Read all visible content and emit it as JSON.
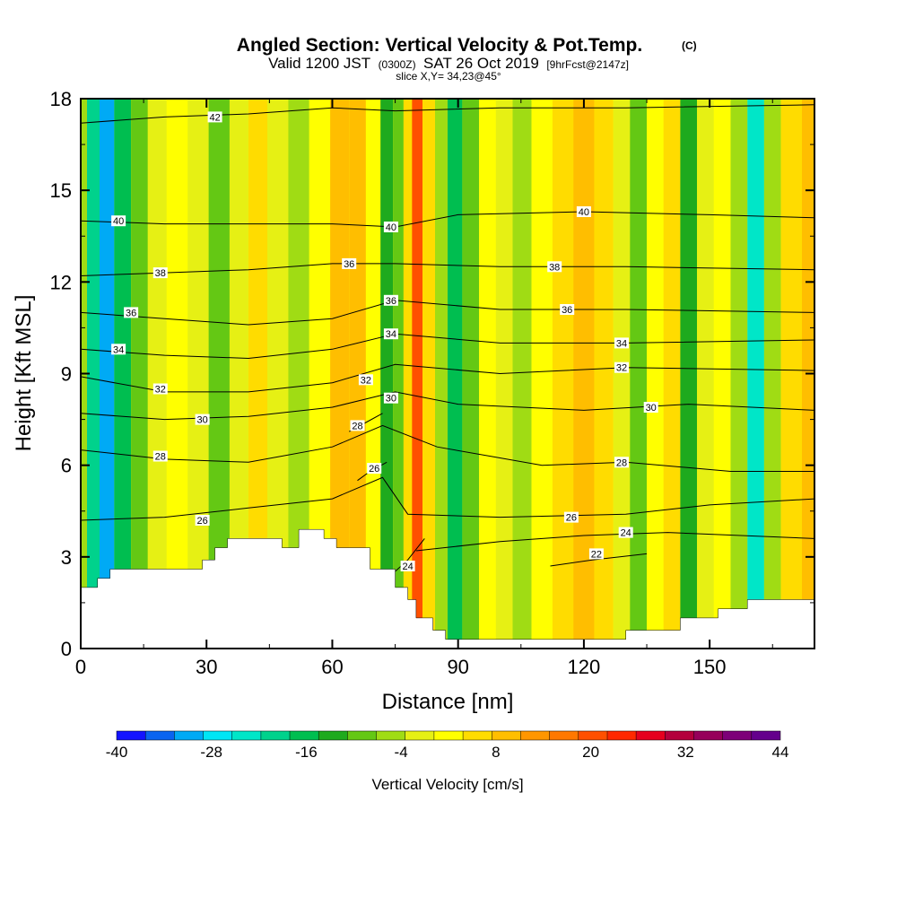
{
  "title": {
    "main": "Angled Section: Vertical Velocity & Pot.Temp.",
    "copyright": "(C)",
    "valid_a": "Valid 1200 JST",
    "valid_utc": "(0300Z)",
    "valid_b": "SAT 26 Oct 2019",
    "fcst": "[9hrFcst@2147z]",
    "slice": "slice X,Y= 34,23@45°"
  },
  "chart_data": {
    "type": "heatmap",
    "xlabel": "Distance [nm]",
    "ylabel": "Height [Kft MSL]",
    "xlim": [
      0,
      175
    ],
    "ylim": [
      0,
      18
    ],
    "x_ticks": [
      "0",
      "30",
      "60",
      "90",
      "120",
      "150"
    ],
    "y_ticks": [
      "0",
      "3",
      "6",
      "9",
      "12",
      "15",
      "18"
    ],
    "colorbar": {
      "label": "Vertical Velocity [cm/s]",
      "range": [
        -40,
        44
      ],
      "step": 4,
      "tick_labels": [
        "-40",
        "-28",
        "-16",
        "-4",
        "8",
        "20",
        "32",
        "44"
      ],
      "colors": [
        "#1414ff",
        "#0a64f0",
        "#00aaf5",
        "#00e6f5",
        "#00e6c8",
        "#00d28c",
        "#00be50",
        "#1eaa1e",
        "#64c814",
        "#a0dc14",
        "#e6f014",
        "#ffff00",
        "#ffdc00",
        "#ffbe00",
        "#ff9600",
        "#ff7800",
        "#ff5000",
        "#ff2800",
        "#e6001e",
        "#b4003c",
        "#96005a",
        "#7d0078",
        "#64008c"
      ]
    },
    "vertical_velocity_columns": [
      {
        "x": 0,
        "w": -2
      },
      {
        "x": 3,
        "w": -20
      },
      {
        "x": 6,
        "w": -30
      },
      {
        "x": 10,
        "w": -14
      },
      {
        "x": 14,
        "w": -8
      },
      {
        "x": 18,
        "w": 0
      },
      {
        "x": 23,
        "w": 6
      },
      {
        "x": 28,
        "w": 2
      },
      {
        "x": 33,
        "w": -6
      },
      {
        "x": 38,
        "w": 2
      },
      {
        "x": 42,
        "w": 8
      },
      {
        "x": 47,
        "w": 2
      },
      {
        "x": 52,
        "w": -4
      },
      {
        "x": 57,
        "w": 4
      },
      {
        "x": 62,
        "w": 12
      },
      {
        "x": 66,
        "w": 14
      },
      {
        "x": 70,
        "w": 6
      },
      {
        "x": 73,
        "w": -10
      },
      {
        "x": 76,
        "w": -6
      },
      {
        "x": 78,
        "w": 8
      },
      {
        "x": 80,
        "w": 24
      },
      {
        "x": 83,
        "w": 8
      },
      {
        "x": 86,
        "w": -4
      },
      {
        "x": 89,
        "w": -16
      },
      {
        "x": 93,
        "w": -6
      },
      {
        "x": 97,
        "w": 6
      },
      {
        "x": 101,
        "w": 2
      },
      {
        "x": 105,
        "w": -4
      },
      {
        "x": 110,
        "w": 4
      },
      {
        "x": 115,
        "w": 8
      },
      {
        "x": 120,
        "w": 14
      },
      {
        "x": 125,
        "w": 10
      },
      {
        "x": 129,
        "w": 2
      },
      {
        "x": 133,
        "w": -6
      },
      {
        "x": 137,
        "w": 6
      },
      {
        "x": 141,
        "w": 10
      },
      {
        "x": 145,
        "w": -12
      },
      {
        "x": 149,
        "w": 2
      },
      {
        "x": 153,
        "w": 6
      },
      {
        "x": 157,
        "w": -4
      },
      {
        "x": 161,
        "w": -22
      },
      {
        "x": 165,
        "w": -4
      },
      {
        "x": 169,
        "w": 8
      },
      {
        "x": 175,
        "w": 14
      }
    ],
    "terrain_top": [
      {
        "x": 0,
        "h": 2.0
      },
      {
        "x": 4,
        "h": 2.0
      },
      {
        "x": 4,
        "h": 2.3
      },
      {
        "x": 7,
        "h": 2.3
      },
      {
        "x": 7,
        "h": 2.6
      },
      {
        "x": 14,
        "h": 2.6
      },
      {
        "x": 29,
        "h": 2.6
      },
      {
        "x": 29,
        "h": 2.9
      },
      {
        "x": 32,
        "h": 2.9
      },
      {
        "x": 32,
        "h": 3.3
      },
      {
        "x": 35,
        "h": 3.3
      },
      {
        "x": 35,
        "h": 3.6
      },
      {
        "x": 48,
        "h": 3.6
      },
      {
        "x": 48,
        "h": 3.3
      },
      {
        "x": 52,
        "h": 3.3
      },
      {
        "x": 52,
        "h": 3.9
      },
      {
        "x": 58,
        "h": 3.9
      },
      {
        "x": 58,
        "h": 3.6
      },
      {
        "x": 61,
        "h": 3.6
      },
      {
        "x": 61,
        "h": 3.3
      },
      {
        "x": 69,
        "h": 3.3
      },
      {
        "x": 69,
        "h": 2.6
      },
      {
        "x": 75,
        "h": 2.6
      },
      {
        "x": 75,
        "h": 2.0
      },
      {
        "x": 78,
        "h": 2.0
      },
      {
        "x": 78,
        "h": 1.6
      },
      {
        "x": 80,
        "h": 1.6
      },
      {
        "x": 80,
        "h": 1.0
      },
      {
        "x": 84,
        "h": 1.0
      },
      {
        "x": 84,
        "h": 0.6
      },
      {
        "x": 87,
        "h": 0.6
      },
      {
        "x": 87,
        "h": 0.3
      },
      {
        "x": 130,
        "h": 0.3
      },
      {
        "x": 130,
        "h": 0.6
      },
      {
        "x": 143,
        "h": 0.6
      },
      {
        "x": 143,
        "h": 1.0
      },
      {
        "x": 152,
        "h": 1.0
      },
      {
        "x": 152,
        "h": 1.3
      },
      {
        "x": 159,
        "h": 1.3
      },
      {
        "x": 159,
        "h": 1.6
      },
      {
        "x": 175,
        "h": 1.6
      }
    ],
    "isentropes": [
      {
        "level": 22,
        "label": "22",
        "points": [
          [
            112,
            2.7
          ],
          [
            122,
            2.9
          ],
          [
            135,
            3.1
          ]
        ],
        "label_at": [
          123,
          3.1
        ]
      },
      {
        "level": 24,
        "label": "24",
        "points": [
          [
            80,
            3.2
          ],
          [
            100,
            3.5
          ],
          [
            120,
            3.7
          ],
          [
            140,
            3.8
          ],
          [
            175,
            3.6
          ]
        ],
        "label_at": [
          130,
          3.8
        ]
      },
      {
        "level": 24,
        "label": "24",
        "points": [
          [
            74,
            2.4
          ],
          [
            78,
            2.9
          ],
          [
            82,
            3.6
          ]
        ],
        "label_at": [
          78,
          2.7
        ]
      },
      {
        "level": 26,
        "label": "26",
        "points": [
          [
            0,
            4.2
          ],
          [
            20,
            4.3
          ],
          [
            40,
            4.6
          ],
          [
            60,
            4.9
          ],
          [
            72,
            5.6
          ],
          [
            78,
            4.4
          ],
          [
            100,
            4.3
          ],
          [
            130,
            4.4
          ],
          [
            150,
            4.7
          ],
          [
            175,
            4.9
          ]
        ],
        "label_at": [
          29,
          4.2
        ]
      },
      {
        "level": 26,
        "label": "26",
        "points": [
          [
            66,
            5.5
          ],
          [
            69,
            5.8
          ],
          [
            73,
            6.1
          ]
        ],
        "label_at": [
          70,
          5.9
        ]
      },
      {
        "level": 28,
        "label": "28",
        "points": [
          [
            0,
            6.5
          ],
          [
            20,
            6.2
          ],
          [
            40,
            6.1
          ],
          [
            60,
            6.6
          ],
          [
            72,
            7.3
          ],
          [
            85,
            6.6
          ],
          [
            110,
            6.0
          ],
          [
            130,
            6.1
          ],
          [
            155,
            5.8
          ],
          [
            175,
            5.8
          ]
        ],
        "label_at": [
          19,
          6.3
        ]
      },
      {
        "level": 28,
        "label": "28",
        "points": [
          [
            64,
            7.1
          ],
          [
            68,
            7.4
          ],
          [
            72,
            7.7
          ]
        ],
        "label_at": [
          66,
          7.3
        ]
      },
      {
        "level": 30,
        "label": "30",
        "points": [
          [
            0,
            7.7
          ],
          [
            20,
            7.5
          ],
          [
            40,
            7.6
          ],
          [
            60,
            7.9
          ],
          [
            75,
            8.4
          ],
          [
            90,
            8.0
          ],
          [
            120,
            7.8
          ],
          [
            145,
            8.0
          ],
          [
            175,
            7.8
          ]
        ],
        "label_at": [
          29,
          7.5
        ]
      },
      {
        "level": 32,
        "label": "32",
        "points": [
          [
            0,
            8.9
          ],
          [
            20,
            8.4
          ],
          [
            40,
            8.4
          ],
          [
            60,
            8.7
          ],
          [
            75,
            9.3
          ],
          [
            100,
            9.0
          ],
          [
            130,
            9.2
          ],
          [
            175,
            9.1
          ]
        ],
        "label_at": [
          19,
          8.5
        ]
      },
      {
        "level": 34,
        "label": "34",
        "points": [
          [
            0,
            9.8
          ],
          [
            20,
            9.6
          ],
          [
            40,
            9.5
          ],
          [
            60,
            9.8
          ],
          [
            75,
            10.3
          ],
          [
            100,
            10.0
          ],
          [
            130,
            10.0
          ],
          [
            175,
            10.1
          ]
        ],
        "label_at": [
          9,
          9.8
        ]
      },
      {
        "level": 36,
        "label": "36",
        "points": [
          [
            0,
            11.0
          ],
          [
            20,
            10.8
          ],
          [
            40,
            10.6
          ],
          [
            60,
            10.8
          ],
          [
            75,
            11.4
          ],
          [
            100,
            11.1
          ],
          [
            130,
            11.1
          ],
          [
            175,
            11.0
          ]
        ],
        "label_at": [
          12,
          11.0
        ]
      },
      {
        "level": 38,
        "label": "38",
        "points": [
          [
            0,
            12.2
          ],
          [
            20,
            12.3
          ],
          [
            40,
            12.4
          ],
          [
            60,
            12.6
          ],
          [
            75,
            12.6
          ],
          [
            100,
            12.5
          ],
          [
            130,
            12.5
          ],
          [
            175,
            12.4
          ]
        ],
        "label_at": [
          19,
          12.3
        ]
      },
      {
        "level": 40,
        "label": "40",
        "points": [
          [
            0,
            14.0
          ],
          [
            20,
            13.9
          ],
          [
            40,
            13.9
          ],
          [
            60,
            13.9
          ],
          [
            75,
            13.8
          ],
          [
            90,
            14.2
          ],
          [
            120,
            14.3
          ],
          [
            150,
            14.2
          ],
          [
            175,
            14.1
          ]
        ],
        "label_at": [
          9,
          14.0
        ]
      },
      {
        "level": 42,
        "label": "42",
        "points": [
          [
            0,
            17.2
          ],
          [
            20,
            17.4
          ],
          [
            40,
            17.5
          ],
          [
            60,
            17.7
          ],
          [
            75,
            17.6
          ],
          [
            100,
            17.7
          ],
          [
            130,
            17.7
          ],
          [
            175,
            17.8
          ]
        ],
        "label_at": [
          32,
          17.4
        ]
      }
    ],
    "extra_contour_labels": [
      {
        "label": "36",
        "at": [
          64,
          12.6
        ]
      },
      {
        "label": "36",
        "at": [
          74,
          11.4
        ]
      },
      {
        "label": "34",
        "at": [
          74,
          10.3
        ]
      },
      {
        "label": "32",
        "at": [
          68,
          8.8
        ]
      },
      {
        "label": "30",
        "at": [
          74,
          8.2
        ]
      },
      {
        "label": "40",
        "at": [
          74,
          13.8
        ]
      },
      {
        "label": "40",
        "at": [
          120,
          14.3
        ]
      },
      {
        "label": "38",
        "at": [
          113,
          12.5
        ]
      },
      {
        "label": "36",
        "at": [
          116,
          11.1
        ]
      },
      {
        "label": "34",
        "at": [
          129,
          10.0
        ]
      },
      {
        "label": "32",
        "at": [
          129,
          9.2
        ]
      },
      {
        "label": "30",
        "at": [
          136,
          7.9
        ]
      },
      {
        "label": "28",
        "at": [
          129,
          6.1
        ]
      },
      {
        "label": "26",
        "at": [
          117,
          4.3
        ]
      }
    ]
  }
}
